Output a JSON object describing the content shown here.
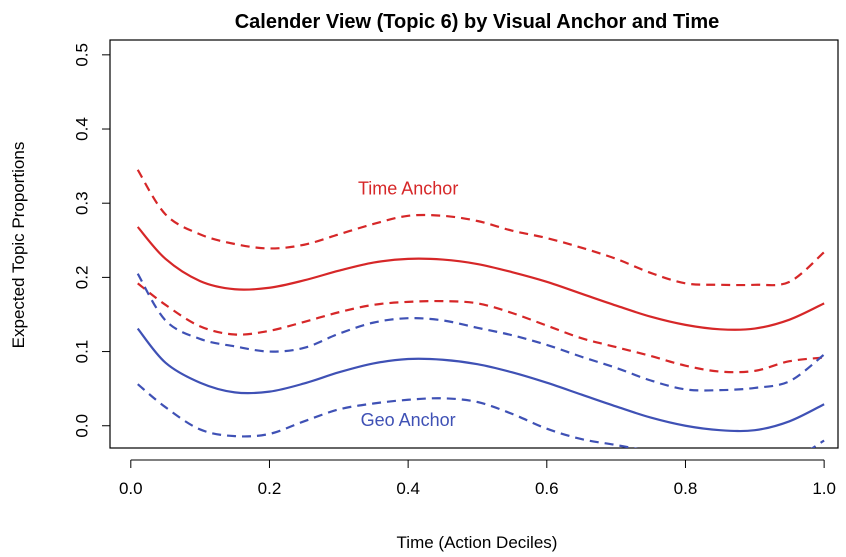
{
  "chart_data": {
    "type": "line",
    "title": "Calender View (Topic 6) by Visual Anchor and Time",
    "xlabel": "Time (Action Deciles)",
    "ylabel": "Expected Topic Proportions",
    "xlim": [
      -0.03,
      1.02
    ],
    "ylim": [
      -0.03,
      0.52
    ],
    "x_ticks": [
      0.0,
      0.2,
      0.4,
      0.6,
      0.8,
      1.0
    ],
    "x_tick_labels": [
      "0.0",
      "0.2",
      "0.4",
      "0.6",
      "0.8",
      "1.0"
    ],
    "y_ticks": [
      0.0,
      0.1,
      0.2,
      0.3,
      0.4,
      0.5
    ],
    "y_tick_labels": [
      "0.0",
      "0.1",
      "0.2",
      "0.3",
      "0.4",
      "0.5"
    ],
    "grid": false,
    "legend": "none",
    "x": [
      0.01,
      0.05,
      0.1,
      0.15,
      0.2,
      0.25,
      0.3,
      0.35,
      0.4,
      0.45,
      0.5,
      0.55,
      0.6,
      0.65,
      0.7,
      0.75,
      0.8,
      0.85,
      0.9,
      0.95,
      1.0
    ],
    "series": [
      {
        "style": "solid",
        "color": "#d62728",
        "values": [
          0.268,
          0.225,
          0.195,
          0.184,
          0.186,
          0.196,
          0.209,
          0.22,
          0.225,
          0.224,
          0.218,
          0.207,
          0.194,
          0.178,
          0.162,
          0.147,
          0.136,
          0.13,
          0.131,
          0.143,
          0.165
        ]
      },
      {
        "style": "dashed",
        "color": "#d62728",
        "values": [
          0.345,
          0.285,
          0.258,
          0.245,
          0.239,
          0.244,
          0.258,
          0.272,
          0.283,
          0.283,
          0.276,
          0.263,
          0.253,
          0.24,
          0.225,
          0.206,
          0.192,
          0.19,
          0.19,
          0.194,
          0.234
        ]
      },
      {
        "style": "dashed",
        "color": "#d62728",
        "values": [
          0.192,
          0.163,
          0.134,
          0.123,
          0.128,
          0.14,
          0.153,
          0.163,
          0.167,
          0.168,
          0.165,
          0.152,
          0.135,
          0.118,
          0.106,
          0.094,
          0.081,
          0.073,
          0.074,
          0.087,
          0.092
        ]
      },
      {
        "style": "solid",
        "color": "#3f51b5",
        "values": [
          0.131,
          0.085,
          0.058,
          0.045,
          0.046,
          0.057,
          0.072,
          0.084,
          0.09,
          0.089,
          0.083,
          0.072,
          0.058,
          0.042,
          0.026,
          0.011,
          0.0,
          -0.006,
          -0.006,
          0.006,
          0.029
        ]
      },
      {
        "style": "dashed",
        "color": "#3f51b5",
        "values": [
          0.205,
          0.142,
          0.117,
          0.107,
          0.1,
          0.105,
          0.124,
          0.139,
          0.145,
          0.142,
          0.132,
          0.122,
          0.109,
          0.093,
          0.078,
          0.061,
          0.049,
          0.048,
          0.051,
          0.06,
          0.096
        ]
      },
      {
        "style": "dashed",
        "color": "#3f51b5",
        "values": [
          0.056,
          0.025,
          -0.005,
          -0.014,
          -0.011,
          0.006,
          0.022,
          0.03,
          0.035,
          0.037,
          0.032,
          0.016,
          -0.004,
          -0.018,
          -0.026,
          -0.035,
          -0.046,
          -0.056,
          -0.06,
          -0.048,
          -0.02
        ]
      }
    ],
    "annotations": [
      {
        "text": "Time Anchor",
        "x": 0.4,
        "y": 0.32,
        "color": "#d62728"
      },
      {
        "text": "Geo Anchor",
        "x": 0.4,
        "y": 0.008,
        "color": "#3f51b5"
      }
    ]
  }
}
